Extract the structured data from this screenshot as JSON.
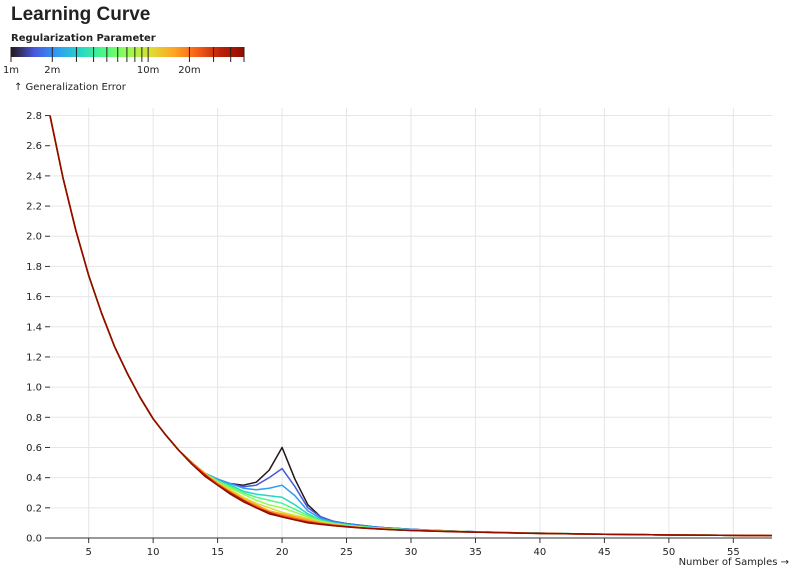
{
  "chart_data": {
    "type": "line",
    "title": "Learning Curve",
    "xlabel": "Number of Samples →",
    "ylabel": "↑ Generalization Error",
    "xlim": [
      2,
      58
    ],
    "ylim": [
      0,
      2.85
    ],
    "x_ticks": [
      5,
      10,
      15,
      20,
      25,
      30,
      35,
      40,
      45,
      50,
      55
    ],
    "y_ticks": [
      0.0,
      0.2,
      0.4,
      0.6,
      0.8,
      1.0,
      1.2,
      1.4,
      1.6,
      1.8,
      2.0,
      2.2,
      2.4,
      2.6,
      2.8
    ],
    "y_tick_labels": [
      "0.0",
      "0.2",
      "0.4",
      "0.6",
      "0.8",
      "1.0",
      "1.2",
      "1.4",
      "1.6",
      "1.8",
      "2.0",
      "2.2",
      "2.4",
      "2.6",
      "2.8"
    ],
    "grid": true,
    "legend": {
      "title": "Regularization Parameter",
      "scale": "log",
      "domain": [
        0.001,
        0.05
      ],
      "tick_labels": [
        {
          "value": 0.001,
          "label": "1m"
        },
        {
          "value": 0.002,
          "label": "2m"
        },
        {
          "value": 0.01,
          "label": "10m"
        },
        {
          "value": 0.02,
          "label": "20m"
        }
      ],
      "tick_marks": [
        0.003,
        0.004,
        0.005,
        0.006,
        0.007,
        0.008,
        0.009,
        0.03,
        0.04,
        0.05
      ],
      "colors": [
        "#23171b",
        "#4a58dd",
        "#2f9df5",
        "#27d7c4",
        "#4df884",
        "#95fb51",
        "#dedd32",
        "#ffa423",
        "#f65f18",
        "#ba2208",
        "#900c00"
      ],
      "placement": "top-left"
    },
    "x": [
      2,
      3,
      4,
      5,
      6,
      7,
      8,
      9,
      10,
      11,
      12,
      13,
      14,
      15,
      16,
      17,
      18,
      19,
      20,
      21,
      22,
      23,
      24,
      25,
      26,
      27,
      28,
      29,
      30,
      32,
      34,
      36,
      38,
      40,
      42,
      44,
      46,
      48,
      50,
      52,
      54,
      56,
      58
    ],
    "series": [
      {
        "lambda": 0.001,
        "color": "#23171b",
        "values": [
          2.8,
          2.39,
          2.04,
          1.74,
          1.49,
          1.27,
          1.09,
          0.93,
          0.79,
          0.68,
          0.58,
          0.5,
          0.43,
          0.39,
          0.36,
          0.35,
          0.37,
          0.45,
          0.6,
          0.39,
          0.22,
          0.14,
          0.11,
          0.095,
          0.085,
          0.075,
          0.068,
          0.063,
          0.058,
          0.05,
          0.044,
          0.039,
          0.035,
          0.032,
          0.029,
          0.026,
          0.024,
          0.022,
          0.02,
          0.019,
          0.018,
          0.017,
          0.016
        ]
      },
      {
        "lambda": 0.0018,
        "color": "#4a58dd",
        "values": [
          2.8,
          2.39,
          2.04,
          1.74,
          1.49,
          1.27,
          1.09,
          0.93,
          0.79,
          0.68,
          0.58,
          0.5,
          0.43,
          0.39,
          0.36,
          0.34,
          0.35,
          0.4,
          0.46,
          0.34,
          0.2,
          0.14,
          0.11,
          0.095,
          0.085,
          0.075,
          0.068,
          0.063,
          0.058,
          0.05,
          0.044,
          0.039,
          0.035,
          0.032,
          0.029,
          0.026,
          0.024,
          0.022,
          0.02,
          0.019,
          0.018,
          0.017,
          0.016
        ]
      },
      {
        "lambda": 0.003,
        "color": "#2f9df5",
        "values": [
          2.8,
          2.39,
          2.04,
          1.74,
          1.49,
          1.27,
          1.09,
          0.93,
          0.79,
          0.68,
          0.58,
          0.5,
          0.43,
          0.39,
          0.36,
          0.33,
          0.32,
          0.33,
          0.35,
          0.28,
          0.18,
          0.13,
          0.105,
          0.092,
          0.082,
          0.073,
          0.066,
          0.061,
          0.057,
          0.05,
          0.044,
          0.039,
          0.035,
          0.032,
          0.029,
          0.026,
          0.024,
          0.022,
          0.02,
          0.019,
          0.018,
          0.017,
          0.016
        ]
      },
      {
        "lambda": 0.005,
        "color": "#27d7c4",
        "values": [
          2.8,
          2.39,
          2.04,
          1.74,
          1.49,
          1.27,
          1.09,
          0.93,
          0.79,
          0.68,
          0.58,
          0.5,
          0.43,
          0.38,
          0.35,
          0.31,
          0.29,
          0.28,
          0.27,
          0.22,
          0.16,
          0.12,
          0.1,
          0.088,
          0.078,
          0.07,
          0.064,
          0.059,
          0.055,
          0.049,
          0.043,
          0.038,
          0.035,
          0.032,
          0.029,
          0.026,
          0.024,
          0.022,
          0.02,
          0.019,
          0.018,
          0.017,
          0.016
        ]
      },
      {
        "lambda": 0.008,
        "color": "#4df884",
        "values": [
          2.8,
          2.39,
          2.04,
          1.74,
          1.49,
          1.27,
          1.09,
          0.93,
          0.79,
          0.68,
          0.58,
          0.5,
          0.43,
          0.38,
          0.34,
          0.3,
          0.27,
          0.25,
          0.23,
          0.19,
          0.15,
          0.115,
          0.097,
          0.085,
          0.075,
          0.068,
          0.063,
          0.058,
          0.054,
          0.048,
          0.043,
          0.038,
          0.035,
          0.032,
          0.029,
          0.026,
          0.024,
          0.022,
          0.02,
          0.019,
          0.018,
          0.017,
          0.016
        ]
      },
      {
        "lambda": 0.012,
        "color": "#95fb51",
        "values": [
          2.8,
          2.39,
          2.04,
          1.74,
          1.49,
          1.27,
          1.09,
          0.93,
          0.79,
          0.68,
          0.58,
          0.5,
          0.43,
          0.37,
          0.33,
          0.29,
          0.25,
          0.22,
          0.2,
          0.17,
          0.14,
          0.11,
          0.094,
          0.082,
          0.073,
          0.066,
          0.061,
          0.057,
          0.053,
          0.047,
          0.042,
          0.038,
          0.034,
          0.031,
          0.028,
          0.026,
          0.024,
          0.022,
          0.02,
          0.019,
          0.018,
          0.017,
          0.016
        ]
      },
      {
        "lambda": 0.016,
        "color": "#dedd32",
        "values": [
          2.8,
          2.39,
          2.04,
          1.74,
          1.49,
          1.27,
          1.09,
          0.93,
          0.79,
          0.68,
          0.58,
          0.5,
          0.43,
          0.37,
          0.32,
          0.27,
          0.23,
          0.2,
          0.17,
          0.15,
          0.13,
          0.105,
          0.09,
          0.08,
          0.072,
          0.065,
          0.06,
          0.056,
          0.052,
          0.047,
          0.042,
          0.038,
          0.034,
          0.031,
          0.028,
          0.026,
          0.024,
          0.022,
          0.02,
          0.019,
          0.018,
          0.017,
          0.016
        ]
      },
      {
        "lambda": 0.022,
        "color": "#ffa423",
        "values": [
          2.8,
          2.39,
          2.04,
          1.74,
          1.49,
          1.27,
          1.09,
          0.93,
          0.79,
          0.68,
          0.58,
          0.5,
          0.43,
          0.36,
          0.31,
          0.26,
          0.22,
          0.18,
          0.16,
          0.14,
          0.12,
          0.1,
          0.088,
          0.078,
          0.07,
          0.064,
          0.059,
          0.055,
          0.052,
          0.046,
          0.042,
          0.038,
          0.034,
          0.031,
          0.028,
          0.026,
          0.024,
          0.022,
          0.02,
          0.019,
          0.018,
          0.017,
          0.016
        ]
      },
      {
        "lambda": 0.03,
        "color": "#f65f18",
        "values": [
          2.8,
          2.39,
          2.04,
          1.74,
          1.49,
          1.27,
          1.09,
          0.93,
          0.79,
          0.68,
          0.58,
          0.5,
          0.42,
          0.36,
          0.3,
          0.25,
          0.21,
          0.17,
          0.15,
          0.13,
          0.11,
          0.096,
          0.085,
          0.076,
          0.069,
          0.063,
          0.058,
          0.054,
          0.051,
          0.046,
          0.041,
          0.037,
          0.034,
          0.031,
          0.028,
          0.026,
          0.024,
          0.022,
          0.02,
          0.019,
          0.018,
          0.017,
          0.016
        ]
      },
      {
        "lambda": 0.04,
        "color": "#ba2208",
        "values": [
          2.8,
          2.39,
          2.04,
          1.74,
          1.49,
          1.27,
          1.09,
          0.93,
          0.79,
          0.68,
          0.58,
          0.49,
          0.42,
          0.35,
          0.3,
          0.25,
          0.2,
          0.17,
          0.14,
          0.12,
          0.105,
          0.093,
          0.083,
          0.075,
          0.068,
          0.062,
          0.058,
          0.054,
          0.05,
          0.045,
          0.041,
          0.037,
          0.034,
          0.031,
          0.028,
          0.026,
          0.024,
          0.022,
          0.02,
          0.019,
          0.018,
          0.017,
          0.016
        ]
      },
      {
        "lambda": 0.05,
        "color": "#900c00",
        "values": [
          2.8,
          2.39,
          2.04,
          1.74,
          1.49,
          1.27,
          1.09,
          0.93,
          0.79,
          0.68,
          0.58,
          0.49,
          0.41,
          0.35,
          0.29,
          0.24,
          0.2,
          0.16,
          0.14,
          0.12,
          0.1,
          0.09,
          0.081,
          0.074,
          0.067,
          0.062,
          0.057,
          0.053,
          0.05,
          0.045,
          0.04,
          0.037,
          0.033,
          0.03,
          0.028,
          0.026,
          0.024,
          0.022,
          0.02,
          0.019,
          0.018,
          0.017,
          0.016
        ]
      }
    ]
  }
}
